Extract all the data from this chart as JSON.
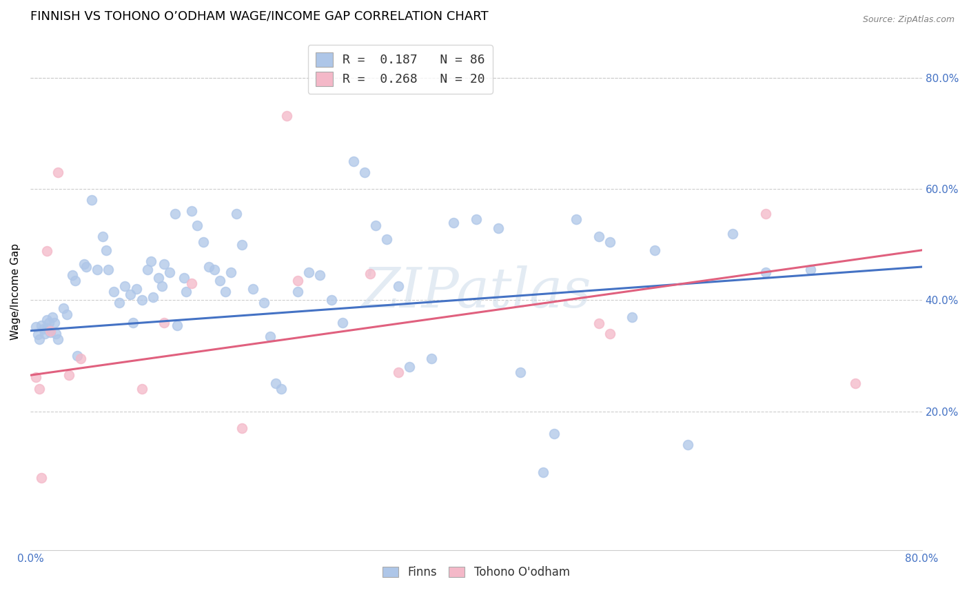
{
  "title": "FINNISH VS TOHONO O’ODHAM WAGE/INCOME GAP CORRELATION CHART",
  "source": "Source: ZipAtlas.com",
  "ylabel": "Wage/Income Gap",
  "xlim": [
    0.0,
    0.8
  ],
  "ylim": [
    -0.05,
    0.88
  ],
  "xticks": [
    0.0,
    0.1,
    0.2,
    0.3,
    0.4,
    0.5,
    0.6,
    0.7,
    0.8
  ],
  "xticklabels": [
    "0.0%",
    "",
    "",
    "",
    "",
    "",
    "",
    "",
    "80.0%"
  ],
  "yticks_right": [
    0.2,
    0.4,
    0.6,
    0.8
  ],
  "ytick_right_labels": [
    "20.0%",
    "40.0%",
    "60.0%",
    "80.0%"
  ],
  "legend_line1": "R =  0.187   N = 86",
  "legend_line2": "R =  0.268   N = 20",
  "finns_color": "#aec6e8",
  "tohono_color": "#f4b8c8",
  "finns_line_color": "#4472c4",
  "tohono_line_color": "#e0607e",
  "watermark": "ZIPatlas",
  "finns_x": [
    0.005,
    0.007,
    0.008,
    0.01,
    0.012,
    0.013,
    0.015,
    0.015,
    0.017,
    0.018,
    0.02,
    0.022,
    0.023,
    0.025,
    0.03,
    0.033,
    0.038,
    0.04,
    0.042,
    0.048,
    0.05,
    0.055,
    0.06,
    0.065,
    0.068,
    0.07,
    0.075,
    0.08,
    0.085,
    0.09,
    0.092,
    0.095,
    0.1,
    0.105,
    0.108,
    0.11,
    0.115,
    0.118,
    0.12,
    0.125,
    0.13,
    0.132,
    0.138,
    0.14,
    0.145,
    0.15,
    0.155,
    0.16,
    0.165,
    0.17,
    0.175,
    0.18,
    0.185,
    0.19,
    0.2,
    0.21,
    0.215,
    0.22,
    0.225,
    0.24,
    0.25,
    0.26,
    0.27,
    0.28,
    0.29,
    0.3,
    0.31,
    0.32,
    0.33,
    0.34,
    0.36,
    0.38,
    0.4,
    0.42,
    0.44,
    0.46,
    0.47,
    0.49,
    0.51,
    0.52,
    0.54,
    0.56,
    0.59,
    0.63,
    0.66,
    0.7
  ],
  "finns_y": [
    0.352,
    0.338,
    0.33,
    0.355,
    0.348,
    0.34,
    0.365,
    0.35,
    0.36,
    0.342,
    0.37,
    0.36,
    0.34,
    0.33,
    0.385,
    0.375,
    0.445,
    0.435,
    0.3,
    0.465,
    0.46,
    0.58,
    0.455,
    0.515,
    0.49,
    0.455,
    0.415,
    0.395,
    0.425,
    0.41,
    0.36,
    0.42,
    0.4,
    0.455,
    0.47,
    0.405,
    0.44,
    0.425,
    0.465,
    0.45,
    0.555,
    0.355,
    0.44,
    0.415,
    0.56,
    0.535,
    0.505,
    0.46,
    0.455,
    0.435,
    0.415,
    0.45,
    0.555,
    0.5,
    0.42,
    0.395,
    0.335,
    0.25,
    0.24,
    0.415,
    0.45,
    0.445,
    0.4,
    0.36,
    0.65,
    0.63,
    0.535,
    0.51,
    0.425,
    0.28,
    0.295,
    0.54,
    0.545,
    0.53,
    0.27,
    0.09,
    0.16,
    0.545,
    0.515,
    0.505,
    0.37,
    0.49,
    0.14,
    0.52,
    0.45,
    0.455
  ],
  "tohono_x": [
    0.005,
    0.008,
    0.01,
    0.015,
    0.018,
    0.025,
    0.035,
    0.045,
    0.1,
    0.12,
    0.145,
    0.19,
    0.23,
    0.24,
    0.305,
    0.33,
    0.51,
    0.52,
    0.66,
    0.74
  ],
  "tohono_y": [
    0.262,
    0.24,
    0.08,
    0.488,
    0.345,
    0.63,
    0.265,
    0.295,
    0.24,
    0.36,
    0.43,
    0.17,
    0.732,
    0.435,
    0.448,
    0.27,
    0.358,
    0.34,
    0.555,
    0.25
  ],
  "finns_trend_x": [
    0.0,
    0.8
  ],
  "finns_trend_y": [
    0.345,
    0.46
  ],
  "tohono_trend_x": [
    0.0,
    0.8
  ],
  "tohono_trend_y": [
    0.265,
    0.49
  ],
  "background_color": "#ffffff",
  "grid_color": "#cccccc",
  "title_fontsize": 13,
  "axis_label_fontsize": 11,
  "tick_fontsize": 11,
  "right_tick_color": "#4472c4"
}
